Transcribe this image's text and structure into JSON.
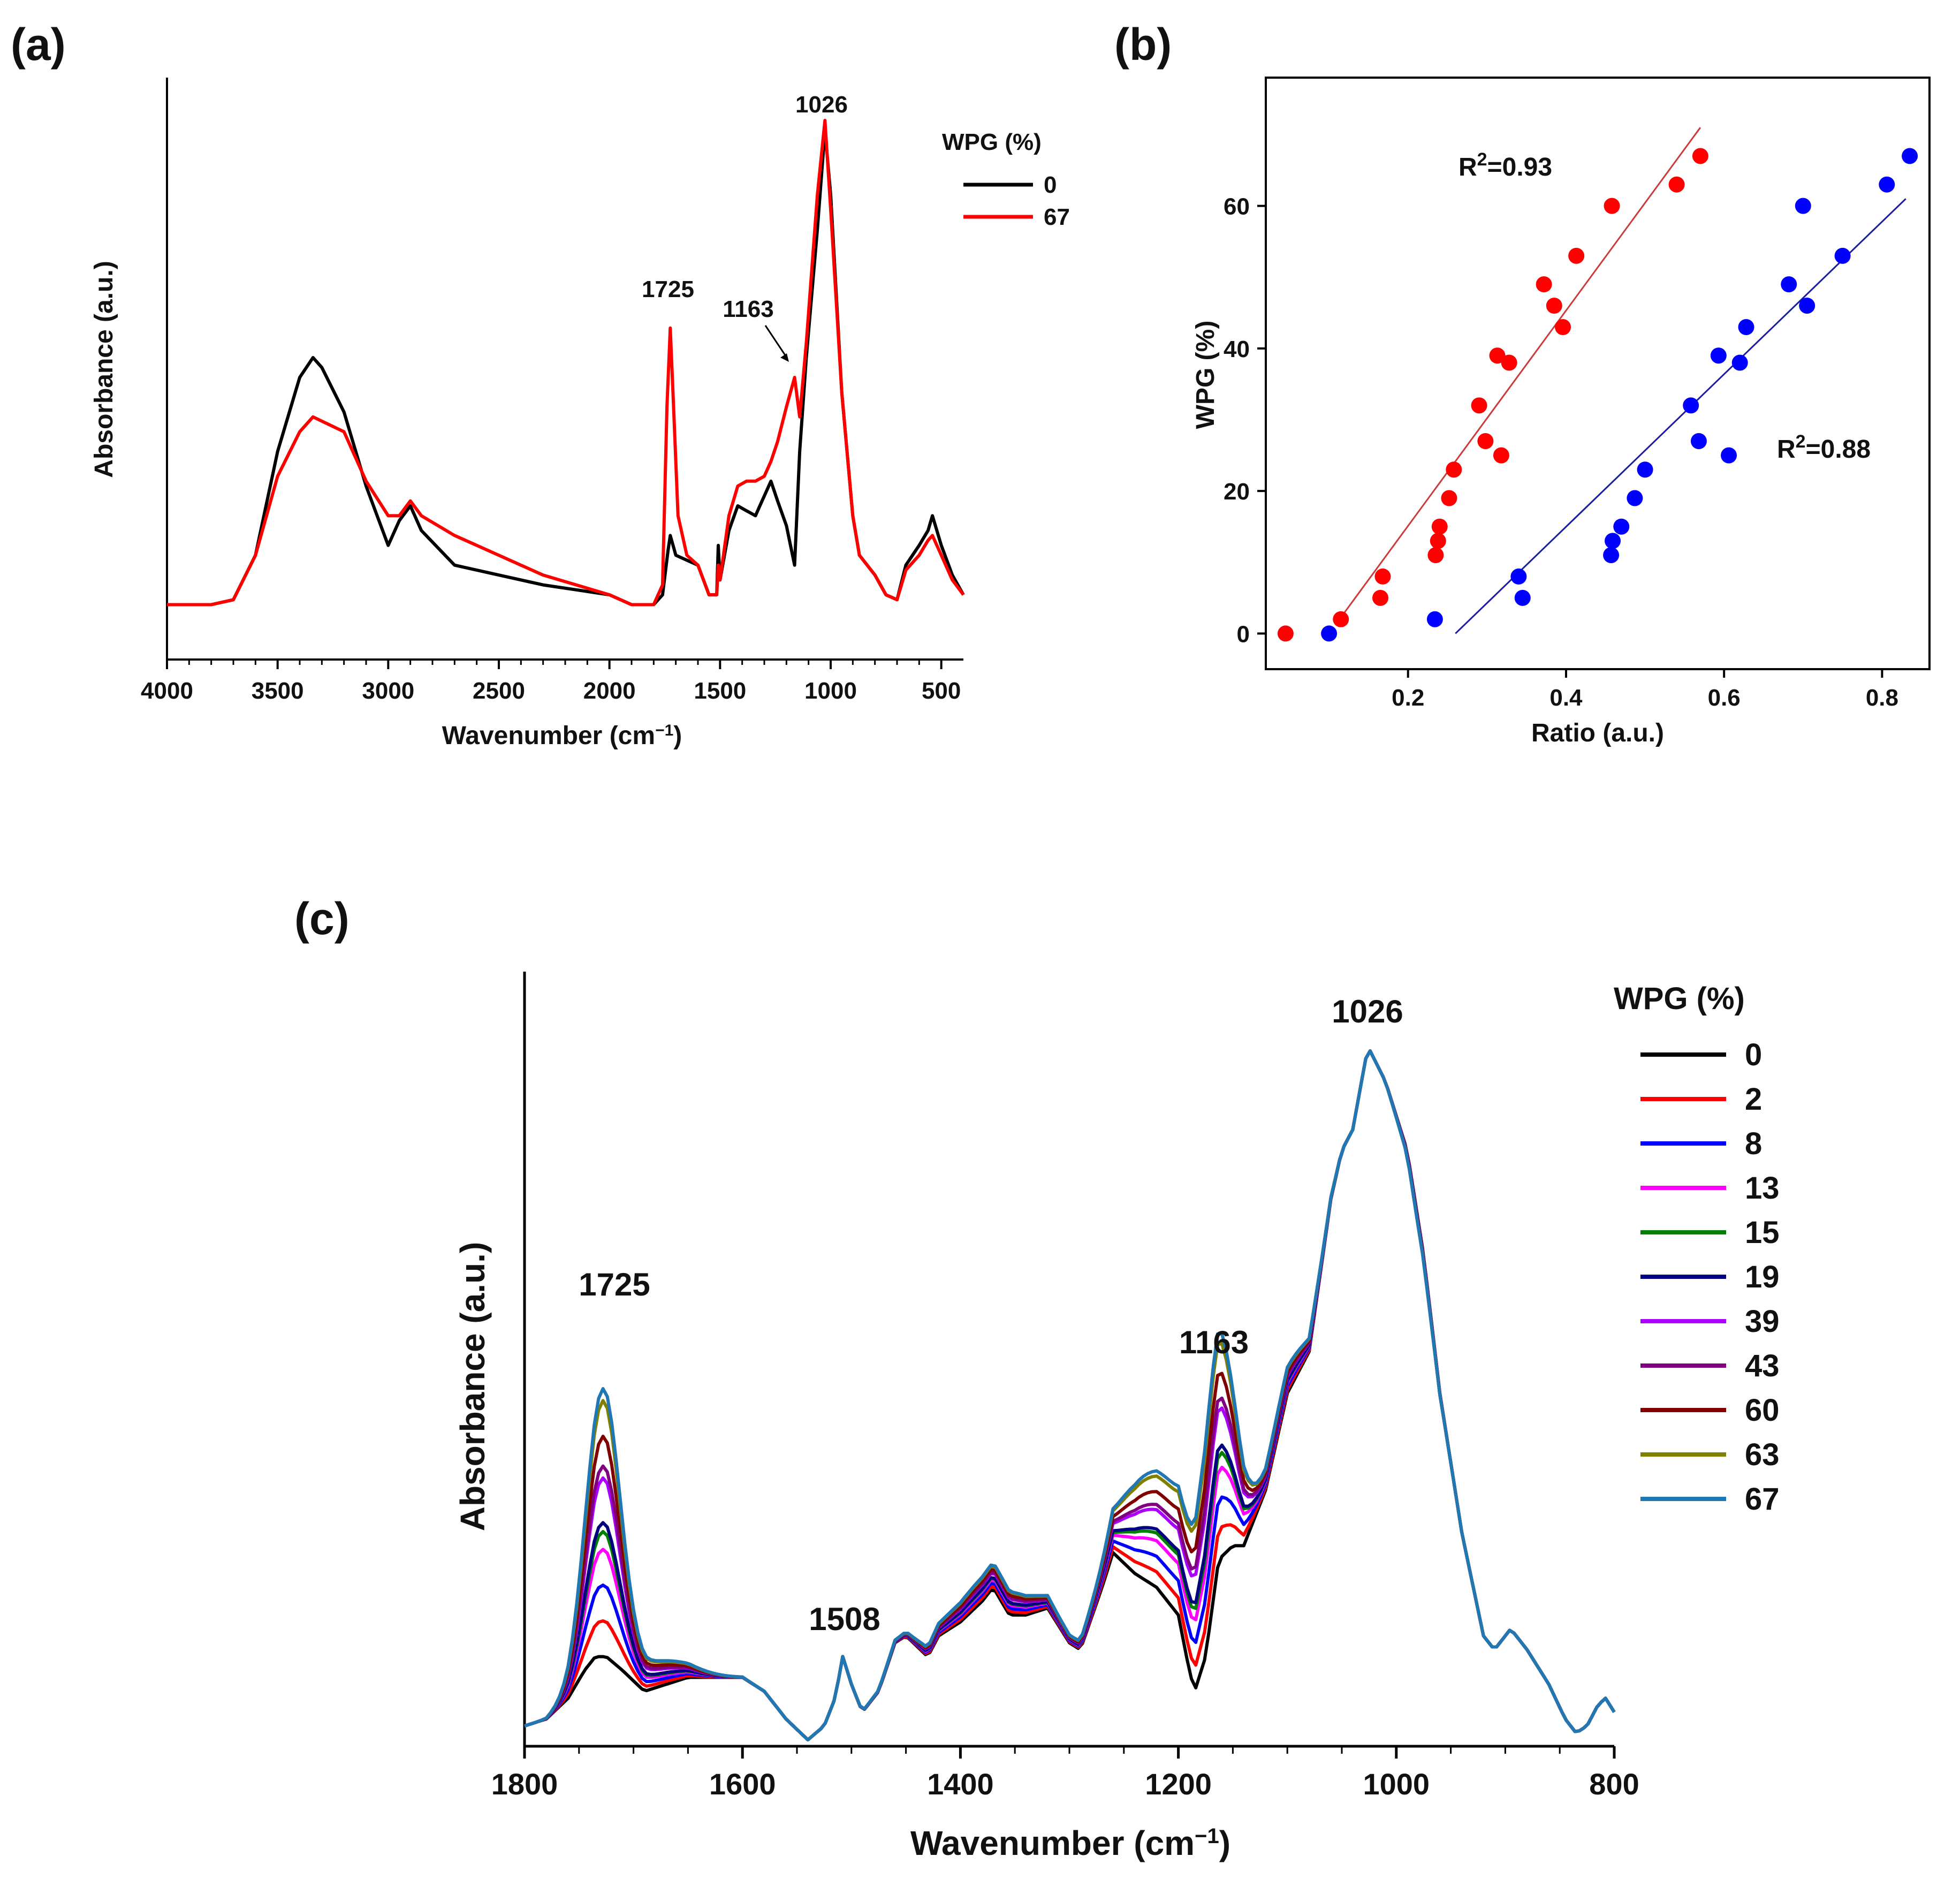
{
  "chart_data": [
    {
      "panel": "(a)",
      "type": "line",
      "xlabel_main": "Wavenumber (cm",
      "xlabel_sup": "−1",
      "xlabel_end": ")",
      "ylabel": "Absorbance (a.u.)",
      "xlim": [
        4000,
        400
      ],
      "x_reversed": true,
      "xticks": [
        4000,
        3500,
        3000,
        2500,
        2000,
        1500,
        1000,
        500
      ],
      "legend_title": "WPG (%)",
      "annotations": [
        "1725",
        "1163",
        "1026"
      ],
      "series": [
        {
          "name": "0",
          "color": "#000000",
          "points": [
            [
              4000,
              0.02
            ],
            [
              3800,
              0.02
            ],
            [
              3700,
              0.03
            ],
            [
              3600,
              0.12
            ],
            [
              3500,
              0.33
            ],
            [
              3400,
              0.48
            ],
            [
              3340,
              0.52
            ],
            [
              3300,
              0.5
            ],
            [
              3200,
              0.41
            ],
            [
              3100,
              0.26
            ],
            [
              3000,
              0.14
            ],
            [
              2950,
              0.19
            ],
            [
              2900,
              0.22
            ],
            [
              2850,
              0.17
            ],
            [
              2700,
              0.1
            ],
            [
              2500,
              0.08
            ],
            [
              2300,
              0.06
            ],
            [
              2150,
              0.05
            ],
            [
              2000,
              0.04
            ],
            [
              1900,
              0.02
            ],
            [
              1800,
              0.02
            ],
            [
              1760,
              0.04
            ],
            [
              1735,
              0.13
            ],
            [
              1725,
              0.16
            ],
            [
              1700,
              0.12
            ],
            [
              1650,
              0.11
            ],
            [
              1600,
              0.1
            ],
            [
              1550,
              0.04
            ],
            [
              1515,
              0.04
            ],
            [
              1508,
              0.14
            ],
            [
              1500,
              0.07
            ],
            [
              1460,
              0.17
            ],
            [
              1420,
              0.22
            ],
            [
              1380,
              0.21
            ],
            [
              1340,
              0.2
            ],
            [
              1320,
              0.22
            ],
            [
              1270,
              0.27
            ],
            [
              1240,
              0.23
            ],
            [
              1200,
              0.18
            ],
            [
              1163,
              0.1
            ],
            [
              1140,
              0.33
            ],
            [
              1110,
              0.52
            ],
            [
              1060,
              0.78
            ],
            [
              1026,
              0.98
            ],
            [
              1000,
              0.85
            ],
            [
              950,
              0.45
            ],
            [
              900,
              0.2
            ],
            [
              870,
              0.12
            ],
            [
              800,
              0.08
            ],
            [
              750,
              0.04
            ],
            [
              700,
              0.03
            ],
            [
              660,
              0.1
            ],
            [
              600,
              0.14
            ],
            [
              560,
              0.17
            ],
            [
              540,
              0.2
            ],
            [
              500,
              0.14
            ],
            [
              450,
              0.08
            ],
            [
              400,
              0.04
            ]
          ]
        },
        {
          "name": "67",
          "color": "#ff0000",
          "points": [
            [
              4000,
              0.02
            ],
            [
              3800,
              0.02
            ],
            [
              3700,
              0.03
            ],
            [
              3600,
              0.12
            ],
            [
              3500,
              0.28
            ],
            [
              3400,
              0.37
            ],
            [
              3340,
              0.4
            ],
            [
              3200,
              0.37
            ],
            [
              3100,
              0.27
            ],
            [
              3000,
              0.2
            ],
            [
              2950,
              0.2
            ],
            [
              2900,
              0.23
            ],
            [
              2850,
              0.2
            ],
            [
              2700,
              0.16
            ],
            [
              2500,
              0.12
            ],
            [
              2300,
              0.08
            ],
            [
              2150,
              0.06
            ],
            [
              2000,
              0.04
            ],
            [
              1900,
              0.02
            ],
            [
              1800,
              0.02
            ],
            [
              1760,
              0.06
            ],
            [
              1740,
              0.42
            ],
            [
              1725,
              0.58
            ],
            [
              1710,
              0.42
            ],
            [
              1690,
              0.2
            ],
            [
              1650,
              0.12
            ],
            [
              1600,
              0.1
            ],
            [
              1550,
              0.04
            ],
            [
              1515,
              0.04
            ],
            [
              1508,
              0.1
            ],
            [
              1500,
              0.07
            ],
            [
              1460,
              0.2
            ],
            [
              1420,
              0.26
            ],
            [
              1380,
              0.27
            ],
            [
              1340,
              0.27
            ],
            [
              1300,
              0.28
            ],
            [
              1270,
              0.31
            ],
            [
              1240,
              0.35
            ],
            [
              1200,
              0.42
            ],
            [
              1163,
              0.48
            ],
            [
              1140,
              0.4
            ],
            [
              1110,
              0.55
            ],
            [
              1060,
              0.85
            ],
            [
              1026,
              1.0
            ],
            [
              1000,
              0.82
            ],
            [
              950,
              0.45
            ],
            [
              900,
              0.2
            ],
            [
              870,
              0.12
            ],
            [
              800,
              0.08
            ],
            [
              750,
              0.04
            ],
            [
              700,
              0.03
            ],
            [
              660,
              0.09
            ],
            [
              600,
              0.12
            ],
            [
              560,
              0.15
            ],
            [
              540,
              0.16
            ],
            [
              500,
              0.12
            ],
            [
              450,
              0.07
            ],
            [
              400,
              0.04
            ]
          ]
        }
      ]
    },
    {
      "panel": "(b)",
      "type": "scatter",
      "xlabel": "Ratio (a.u.)",
      "ylabel": "WPG (%)",
      "xlim": [
        0.02,
        0.86
      ],
      "ylim": [
        -5,
        78
      ],
      "xticks": [
        "0.2",
        "0.4",
        "0.6",
        "0.8"
      ],
      "yticks": [
        "0",
        "20",
        "40",
        "60"
      ],
      "series": [
        {
          "name": "red",
          "color": "#ff0000",
          "r2_label": "R",
          "r2_sup": "2",
          "r2_value": "=0.93",
          "points": [
            [
              0.045,
              0
            ],
            [
              0.115,
              2
            ],
            [
              0.165,
              5
            ],
            [
              0.168,
              8
            ],
            [
              0.235,
              11
            ],
            [
              0.238,
              13
            ],
            [
              0.24,
              15
            ],
            [
              0.252,
              19
            ],
            [
              0.258,
              23
            ],
            [
              0.298,
              27
            ],
            [
              0.318,
              25
            ],
            [
              0.29,
              32
            ],
            [
              0.313,
              39
            ],
            [
              0.328,
              38
            ],
            [
              0.385,
              46
            ],
            [
              0.396,
              43
            ],
            [
              0.372,
              49
            ],
            [
              0.413,
              53
            ],
            [
              0.458,
              60
            ],
            [
              0.54,
              63
            ],
            [
              0.57,
              67
            ]
          ],
          "fit": [
            [
              0.11,
              1.5
            ],
            [
              0.57,
              71
            ]
          ]
        },
        {
          "name": "blue",
          "color": "#0000ff",
          "r2_label": "R",
          "r2_sup": "2",
          "r2_value": "=0.88",
          "points": [
            [
              0.1,
              0
            ],
            [
              0.234,
              2
            ],
            [
              0.345,
              5
            ],
            [
              0.34,
              8
            ],
            [
              0.457,
              11
            ],
            [
              0.459,
              13
            ],
            [
              0.47,
              15
            ],
            [
              0.487,
              19
            ],
            [
              0.5,
              23
            ],
            [
              0.568,
              27
            ],
            [
              0.606,
              25
            ],
            [
              0.558,
              32
            ],
            [
              0.593,
              39
            ],
            [
              0.62,
              38
            ],
            [
              0.705,
              46
            ],
            [
              0.628,
              43
            ],
            [
              0.682,
              49
            ],
            [
              0.75,
              53
            ],
            [
              0.7,
              60
            ],
            [
              0.806,
              63
            ],
            [
              0.835,
              67
            ]
          ],
          "fit": [
            [
              0.26,
              0
            ],
            [
              0.83,
              61
            ]
          ]
        }
      ]
    },
    {
      "panel": "(c)",
      "type": "line",
      "xlabel_main": "Wavenumber (cm",
      "xlabel_sup": "−1",
      "xlabel_end": ")",
      "ylabel": "Absorbance (a.u.)",
      "xlim": [
        1800,
        800
      ],
      "x_reversed": true,
      "xticks": [
        1800,
        1600,
        1400,
        1200,
        1000,
        800
      ],
      "legend_title": "WPG (%)",
      "annotations": [
        "1725",
        "1508",
        "1163",
        "1026"
      ],
      "base_profile": [
        [
          1800,
          0.02
        ],
        [
          1780,
          0.03
        ],
        [
          1760,
          0.06
        ],
        [
          1745,
          0.1
        ],
        [
          1735,
          0.12
        ],
        [
          1725,
          0.12
        ],
        [
          1710,
          0.1
        ],
        [
          1690,
          0.07
        ],
        [
          1670,
          0.08
        ],
        [
          1650,
          0.09
        ],
        [
          1620,
          0.09
        ],
        [
          1600,
          0.09
        ],
        [
          1580,
          0.07
        ],
        [
          1560,
          0.03
        ],
        [
          1540,
          0.0
        ],
        [
          1525,
          0.02
        ],
        [
          1515,
          0.06
        ],
        [
          1508,
          0.12
        ],
        [
          1500,
          0.08
        ],
        [
          1490,
          0.04
        ],
        [
          1475,
          0.07
        ],
        [
          1460,
          0.14
        ],
        [
          1450,
          0.15
        ],
        [
          1430,
          0.12
        ],
        [
          1420,
          0.15
        ],
        [
          1400,
          0.17
        ],
        [
          1380,
          0.2
        ],
        [
          1370,
          0.22
        ],
        [
          1355,
          0.18
        ],
        [
          1340,
          0.18
        ],
        [
          1320,
          0.19
        ],
        [
          1300,
          0.14
        ],
        [
          1290,
          0.13
        ],
        [
          1270,
          0.22
        ],
        [
          1260,
          0.27
        ],
        [
          1240,
          0.24
        ],
        [
          1220,
          0.22
        ],
        [
          1200,
          0.18
        ],
        [
          1190,
          0.1
        ],
        [
          1185,
          0.07
        ],
        [
          1175,
          0.12
        ],
        [
          1163,
          0.26
        ],
        [
          1150,
          0.28
        ],
        [
          1140,
          0.28
        ],
        [
          1120,
          0.36
        ],
        [
          1100,
          0.5
        ],
        [
          1080,
          0.56
        ],
        [
          1060,
          0.78
        ],
        [
          1050,
          0.85
        ],
        [
          1040,
          0.88
        ],
        [
          1026,
          1.0
        ],
        [
          1010,
          0.95
        ],
        [
          990,
          0.85
        ],
        [
          975,
          0.7
        ],
        [
          960,
          0.5
        ],
        [
          940,
          0.3
        ],
        [
          920,
          0.15
        ],
        [
          910,
          0.13
        ],
        [
          900,
          0.15
        ],
        [
          895,
          0.16
        ],
        [
          880,
          0.13
        ],
        [
          860,
          0.08
        ],
        [
          845,
          0.03
        ],
        [
          835,
          0.01
        ],
        [
          825,
          0.02
        ],
        [
          815,
          0.05
        ],
        [
          808,
          0.06
        ],
        [
          800,
          0.04
        ]
      ],
      "series": [
        {
          "name": "0",
          "color": "#000000",
          "k": 0.0
        },
        {
          "name": "2",
          "color": "#ff0000",
          "k": 0.12
        },
        {
          "name": "8",
          "color": "#0000ff",
          "k": 0.24
        },
        {
          "name": "13",
          "color": "#ff00ff",
          "k": 0.36
        },
        {
          "name": "15",
          "color": "#008000",
          "k": 0.42
        },
        {
          "name": "19",
          "color": "#000080",
          "k": 0.45
        },
        {
          "name": "39",
          "color": "#aa00ff",
          "k": 0.6
        },
        {
          "name": "43",
          "color": "#800080",
          "k": 0.64
        },
        {
          "name": "60",
          "color": "#800000",
          "k": 0.74
        },
        {
          "name": "63",
          "color": "#808000",
          "k": 0.86
        },
        {
          "name": "67",
          "color": "#1f77b4",
          "k": 0.9
        }
      ]
    }
  ]
}
